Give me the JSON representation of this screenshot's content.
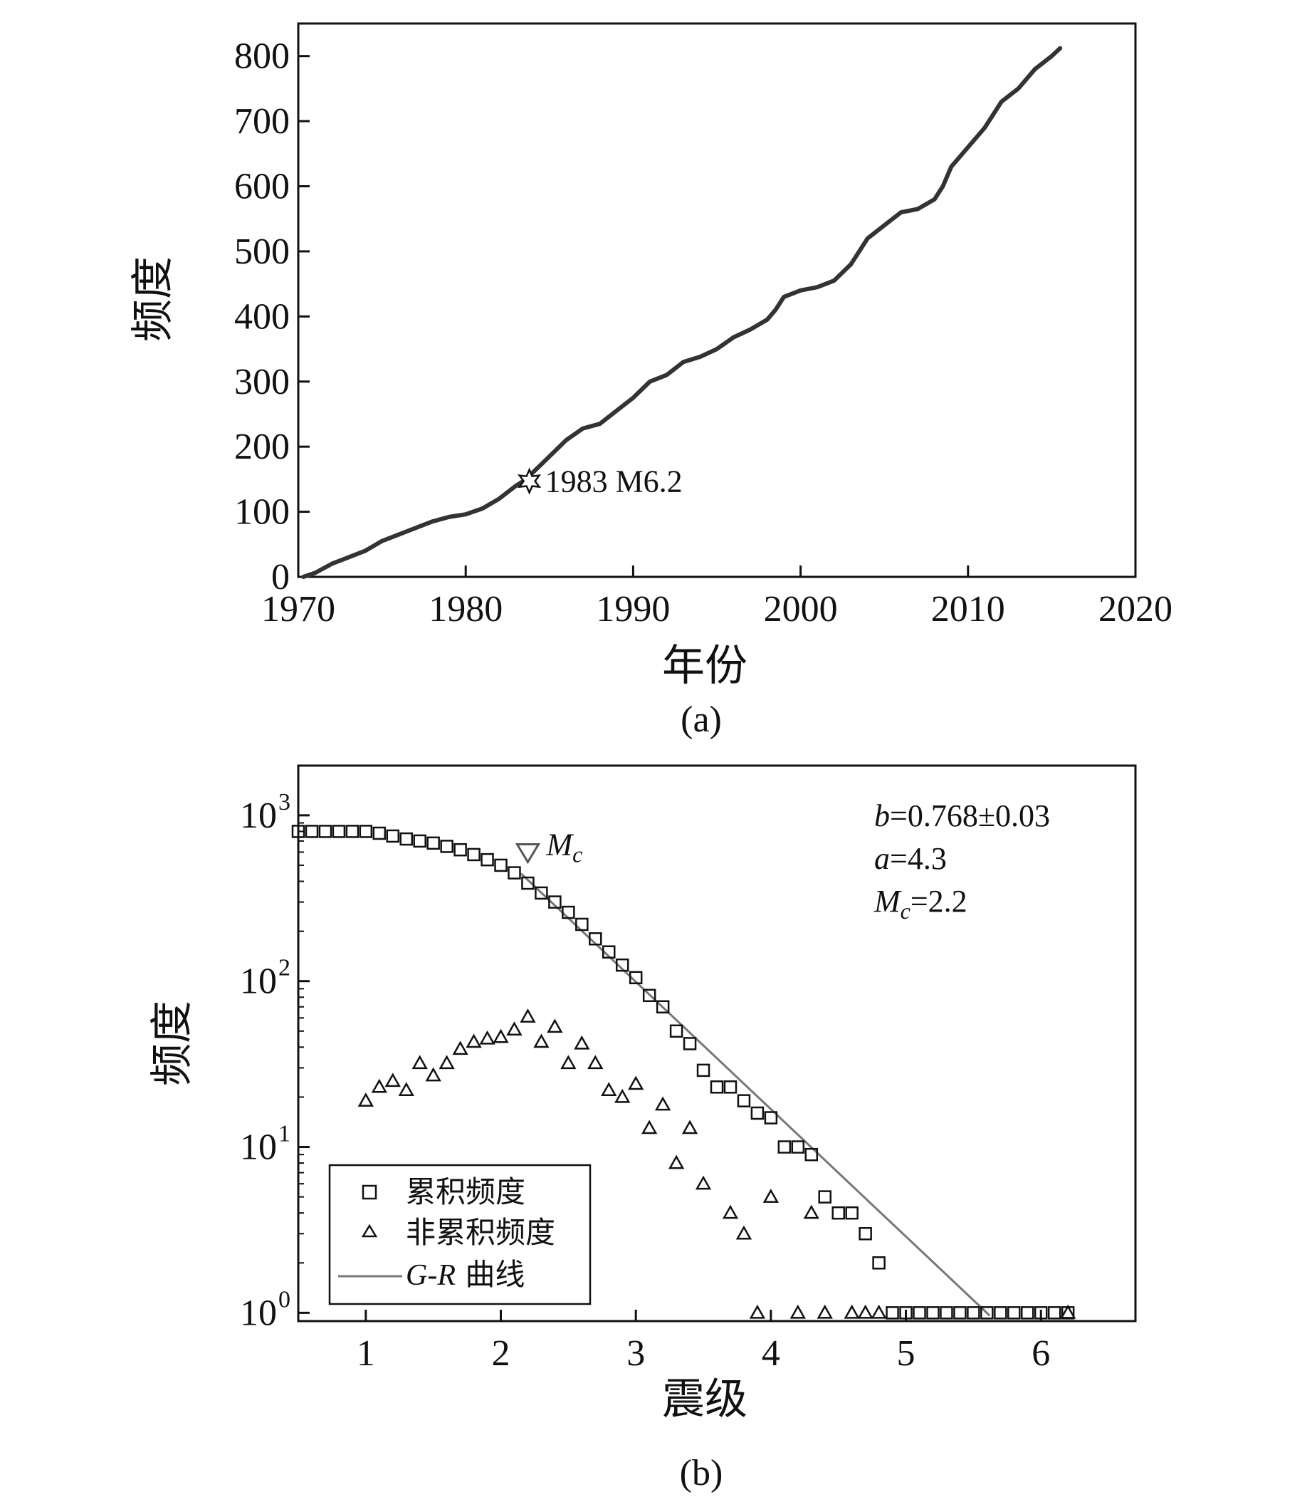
{
  "chart_data": [
    {
      "panel": "a",
      "type": "line",
      "caption": "(a)",
      "xlabel": "年份",
      "ylabel": "频度",
      "xlim": [
        1970,
        2020
      ],
      "ylim": [
        0,
        850
      ],
      "xticks": [
        1970,
        1980,
        1990,
        2000,
        2010,
        2020
      ],
      "yticks": [
        0,
        100,
        200,
        300,
        400,
        500,
        600,
        700,
        800
      ],
      "grid": false,
      "series": [
        {
          "name": "累积频度",
          "color": "#333333",
          "x": [
            1970.3,
            1971,
            1972,
            1973,
            1974,
            1975,
            1976,
            1977,
            1978,
            1979,
            1980,
            1981,
            1982,
            1983,
            1983.5,
            1984,
            1985,
            1986,
            1987,
            1988,
            1989,
            1990,
            1991,
            1992,
            1993,
            1994,
            1995,
            1996,
            1997,
            1998,
            1998.5,
            1999,
            2000,
            2001,
            2002,
            2003,
            2004,
            2005,
            2006,
            2007,
            2008,
            2008.5,
            2009,
            2010,
            2011,
            2012,
            2013,
            2014,
            2015,
            2015.5
          ],
          "y": [
            0,
            6,
            20,
            30,
            40,
            55,
            65,
            75,
            85,
            92,
            96,
            105,
            120,
            140,
            148,
            160,
            185,
            210,
            228,
            235,
            255,
            275,
            300,
            310,
            330,
            338,
            350,
            368,
            380,
            395,
            410,
            430,
            440,
            445,
            455,
            480,
            520,
            540,
            560,
            565,
            580,
            600,
            630,
            660,
            690,
            730,
            750,
            780,
            800,
            812
          ]
        }
      ],
      "annotations": [
        {
          "label": "1983 M6.2",
          "x": 1983.8,
          "y": 147,
          "marker": "star"
        }
      ]
    },
    {
      "panel": "b",
      "type": "scatter",
      "caption": "(b)",
      "xlabel": "震级",
      "ylabel": "频度",
      "xlim": [
        0.5,
        6.7
      ],
      "ylim_log10": [
        -0.05,
        3.3
      ],
      "xticks": [
        1,
        2,
        3,
        4,
        5,
        6
      ],
      "yticks_log10": [
        0,
        1,
        2,
        3
      ],
      "ytick_base": "10",
      "grid": false,
      "legend_position": "bottom-left",
      "legend": [
        {
          "label": "累积频度",
          "marker": "square"
        },
        {
          "label": "非累积频度",
          "marker": "triangle"
        },
        {
          "label_italic": "G-R",
          "label_rest": " 曲线",
          "marker": "line"
        }
      ],
      "stats": {
        "b_sym": "b",
        "b_val": "=0.768±0.03",
        "a_sym": "a",
        "a_val": "=4.3",
        "mc_sym": "M",
        "mc_sub": "c",
        "mc_val": "=2.2"
      },
      "mc_marker": {
        "x": 2.2,
        "y": 600,
        "label": "M",
        "label_sub": "c"
      },
      "gr_line": {
        "a": 4.3,
        "b": 0.768,
        "x_start": 2.15,
        "x_end": 5.62,
        "color": "#777777"
      },
      "series": [
        {
          "name": "累积频度",
          "marker": "square",
          "x": [
            0.5,
            0.6,
            0.7,
            0.8,
            0.9,
            1.0,
            1.1,
            1.2,
            1.3,
            1.4,
            1.5,
            1.6,
            1.7,
            1.8,
            1.9,
            2.0,
            2.1,
            2.2,
            2.3,
            2.4,
            2.5,
            2.6,
            2.7,
            2.8,
            2.9,
            3.0,
            3.1,
            3.2,
            3.3,
            3.4,
            3.5,
            3.6,
            3.7,
            3.8,
            3.9,
            4.0,
            4.1,
            4.2,
            4.3,
            4.4,
            4.5,
            4.6,
            4.7,
            4.8,
            4.9,
            5.0,
            5.1,
            5.2,
            5.3,
            5.4,
            5.5,
            5.6,
            5.7,
            5.8,
            5.9,
            6.0,
            6.1,
            6.2
          ],
          "y": [
            800,
            800,
            800,
            800,
            800,
            800,
            780,
            750,
            720,
            700,
            680,
            650,
            620,
            580,
            540,
            500,
            450,
            390,
            340,
            300,
            260,
            220,
            180,
            150,
            125,
            105,
            82,
            70,
            50,
            42,
            29,
            23,
            23,
            19,
            16,
            15,
            10,
            10,
            9,
            5,
            4,
            4,
            3,
            2,
            1,
            1,
            1,
            1,
            1,
            1,
            1,
            1,
            1,
            1,
            1,
            1,
            1,
            1
          ]
        },
        {
          "name": "非累积频度",
          "marker": "triangle",
          "x": [
            1.0,
            1.1,
            1.2,
            1.3,
            1.4,
            1.5,
            1.6,
            1.7,
            1.8,
            1.9,
            2.0,
            2.1,
            2.2,
            2.3,
            2.4,
            2.5,
            2.6,
            2.7,
            2.8,
            2.9,
            3.0,
            3.1,
            3.2,
            3.3,
            3.4,
            3.5,
            3.7,
            3.8,
            3.9,
            4.0,
            4.2,
            4.3,
            4.4,
            4.6,
            4.7,
            4.8,
            6.2
          ],
          "y": [
            19,
            23,
            25,
            22,
            32,
            27,
            32,
            39,
            43,
            45,
            46,
            51,
            61,
            43,
            53,
            32,
            42,
            32,
            22,
            20,
            24,
            13,
            18,
            8,
            13,
            6,
            4,
            3,
            1,
            5,
            1,
            4,
            1,
            1,
            1,
            1,
            1
          ]
        }
      ]
    }
  ]
}
